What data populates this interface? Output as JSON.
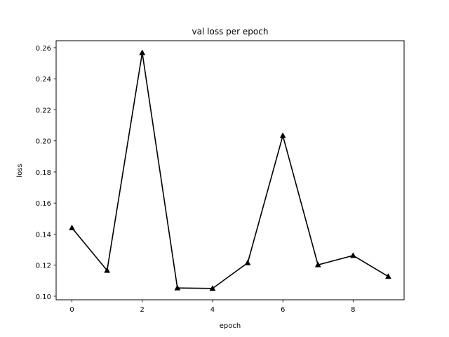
{
  "chart_data": {
    "type": "line",
    "title": "val loss per epoch",
    "xlabel": "epoch",
    "ylabel": "loss",
    "xlim": [
      -0.45,
      9.45
    ],
    "ylim": [
      0.0977,
      0.2645
    ],
    "xticks": [
      0,
      2,
      4,
      6,
      8
    ],
    "yticks": [
      0.1,
      0.12,
      0.14,
      0.16,
      0.18,
      0.2,
      0.22,
      0.24,
      0.26
    ],
    "grid": false,
    "legend": "none",
    "series": [
      {
        "color": "#000000",
        "marker": "triangle",
        "x": [
          0,
          1,
          2,
          3,
          4,
          5,
          6,
          7,
          8,
          9
        ],
        "y": [
          0.144,
          0.1166,
          0.2568,
          0.1053,
          0.105,
          0.1215,
          0.2034,
          0.1202,
          0.1262,
          0.1127
        ]
      }
    ]
  }
}
